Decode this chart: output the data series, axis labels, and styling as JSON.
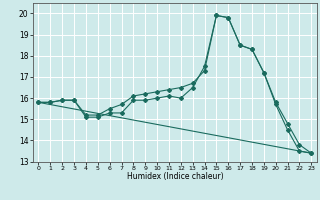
{
  "xlabel": "Humidex (Indice chaleur)",
  "ylabel": "",
  "xlim": [
    -0.5,
    23.5
  ],
  "ylim": [
    13,
    20.5
  ],
  "yticks": [
    13,
    14,
    15,
    16,
    17,
    18,
    19,
    20
  ],
  "xticks": [
    0,
    1,
    2,
    3,
    4,
    5,
    6,
    7,
    8,
    9,
    10,
    11,
    12,
    13,
    14,
    15,
    16,
    17,
    18,
    19,
    20,
    21,
    22,
    23
  ],
  "bg_color": "#ceeaea",
  "line_color": "#1a6b5e",
  "grid_color": "#ffffff",
  "line1_x": [
    0,
    1,
    2,
    3,
    4,
    5,
    6,
    7,
    8,
    9,
    10,
    11,
    12,
    13,
    14,
    15,
    16,
    17,
    18,
    19,
    20,
    21,
    22,
    23
  ],
  "line1_y": [
    15.8,
    15.8,
    15.9,
    15.9,
    15.1,
    15.1,
    15.3,
    15.3,
    15.9,
    15.9,
    16.0,
    16.1,
    16.0,
    16.5,
    17.5,
    19.9,
    19.8,
    18.5,
    18.3,
    17.2,
    15.7,
    14.5,
    13.5,
    13.4
  ],
  "line2_x": [
    0,
    1,
    2,
    3,
    4,
    5,
    6,
    7,
    8,
    9,
    10,
    11,
    12,
    13,
    14,
    15,
    16,
    17,
    18,
    19,
    20,
    21,
    22,
    23
  ],
  "line2_y": [
    15.8,
    15.8,
    15.9,
    15.9,
    15.2,
    15.2,
    15.5,
    15.7,
    16.1,
    16.2,
    16.3,
    16.4,
    16.5,
    16.7,
    17.3,
    19.9,
    19.8,
    18.5,
    18.3,
    17.2,
    15.8,
    14.8,
    13.8,
    13.4
  ],
  "line3_x": [
    0,
    23
  ],
  "line3_y": [
    15.8,
    13.4
  ]
}
